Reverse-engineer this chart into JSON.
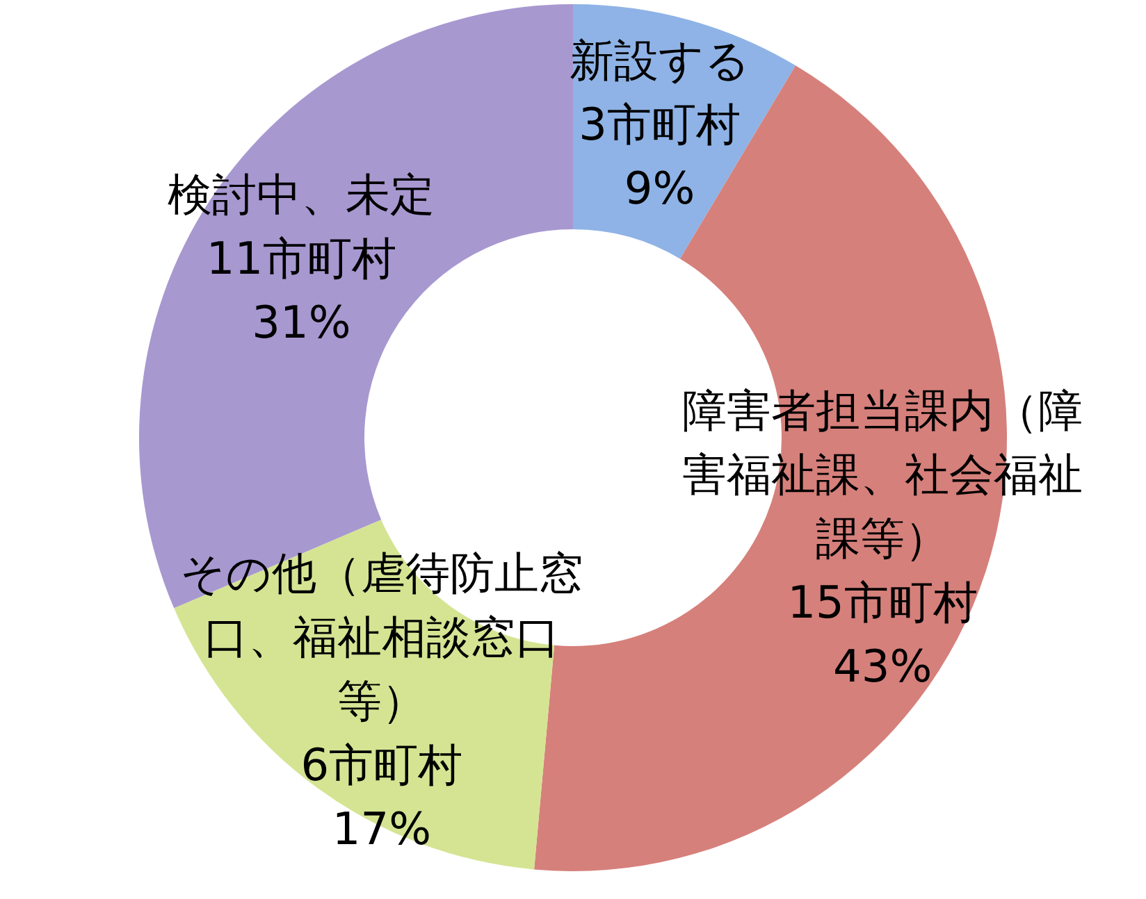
{
  "chart_data": {
    "type": "donut",
    "categories": [
      "新設する",
      "障害者担当課内（障害福祉課、社会福祉課等）",
      "その他（虐待防止窓口、福祉相談窓口等）",
      "検討中、未定"
    ],
    "values": [
      3,
      15,
      6,
      11
    ],
    "value_labels": [
      "3市町村\n9%",
      "15市町村\n43%",
      "6市町村\n17%",
      "11市町村\n31%"
    ],
    "colors": [
      "#8fb3e6",
      "#d6807b",
      "#d5e493",
      "#a898d0"
    ],
    "legend": false
  }
}
